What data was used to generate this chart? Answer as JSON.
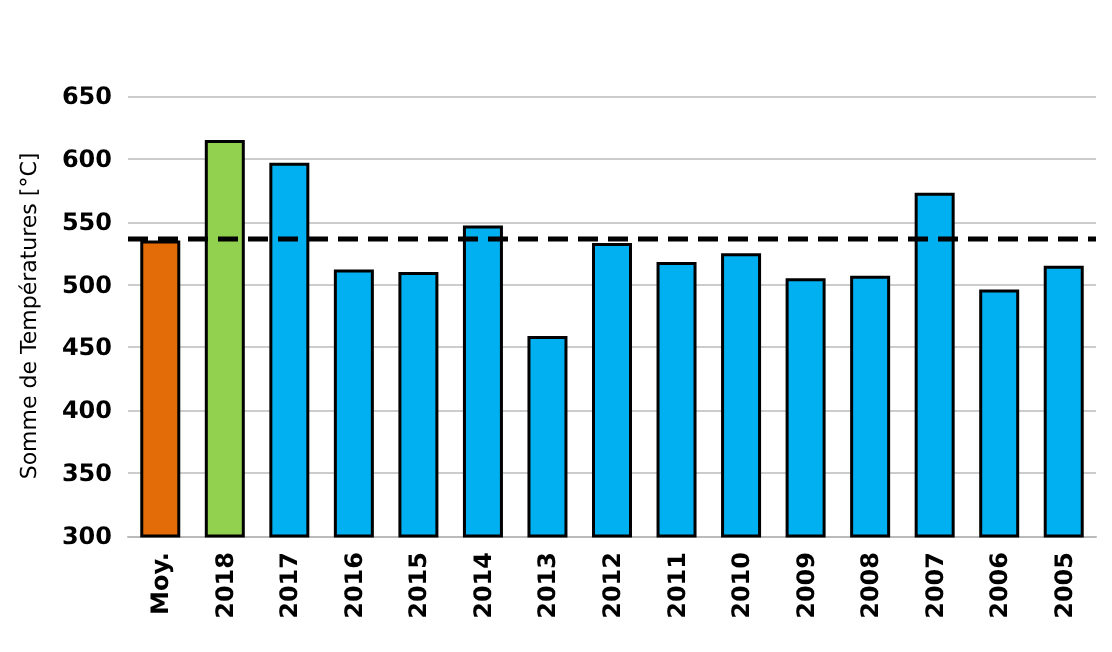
{
  "chart_data": {
    "type": "bar",
    "ylabel": "Somme de Températures [°C]",
    "categories": [
      "Moy.",
      "2018",
      "2017",
      "2016",
      "2015",
      "2014",
      "2013",
      "2012",
      "2011",
      "2010",
      "2009",
      "2008",
      "2007",
      "2006",
      "2005"
    ],
    "values": [
      535,
      615,
      597,
      512,
      510,
      547,
      459,
      533,
      518,
      525,
      505,
      507,
      573,
      496,
      515
    ],
    "colors": [
      "#e36c09",
      "#92d050",
      "#00b0f0",
      "#00b0f0",
      "#00b0f0",
      "#00b0f0",
      "#00b0f0",
      "#00b0f0",
      "#00b0f0",
      "#00b0f0",
      "#00b0f0",
      "#00b0f0",
      "#00b0f0",
      "#00b0f0",
      "#00b0f0"
    ],
    "ylim": [
      300,
      650
    ],
    "yticks": [
      300,
      350,
      400,
      450,
      500,
      550,
      600,
      650
    ],
    "grid": "y",
    "ref_lines": [
      {
        "axis": "y",
        "value": 537,
        "color": "#000000",
        "line_style": "dashed"
      }
    ]
  }
}
